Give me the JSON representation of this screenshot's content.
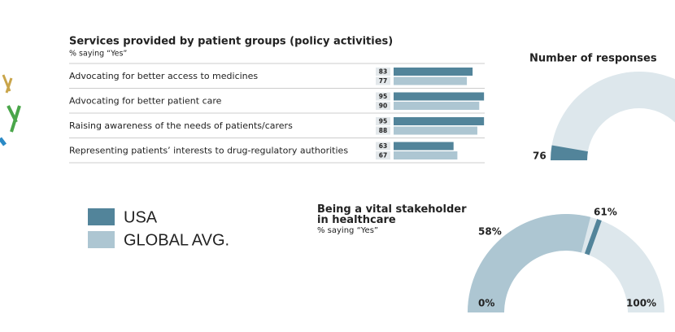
{
  "chart_data": [
    {
      "type": "hbar",
      "title": "Services provided by patient groups (policy activities)",
      "subtitle": "% saying “Yes”",
      "categories": [
        "Advocating for better access to medicines",
        "Advocating for better patient care",
        "Raising awareness of the needs of patients/carers",
        "Representing patients’ interests to drug-regulatory authorities"
      ],
      "series": [
        {
          "name": "USA",
          "color": "#52849a",
          "values": [
            83,
            95,
            95,
            63
          ]
        },
        {
          "name": "GLOBAL AVG.",
          "color": "#adc6d2",
          "values": [
            77,
            90,
            88,
            67
          ]
        }
      ],
      "xlim": [
        0,
        100
      ],
      "legend": "bottom-left"
    },
    {
      "type": "gauge",
      "title": "Number of responses",
      "values": [
        76
      ],
      "color": "#52849a",
      "ylim": [
        0,
        1400
      ]
    },
    {
      "type": "gauge",
      "title": "Being a vital stakeholder in healthcare",
      "subtitle": "% saying “Yes”",
      "values": [
        58,
        61
      ],
      "value_labels": [
        "58%",
        "61%"
      ],
      "colors": [
        "#adc6d2",
        "#52849a"
      ],
      "ylim": [
        0,
        100
      ],
      "yticks": [
        {
          "value": 0,
          "label": "0%"
        },
        {
          "value": 100,
          "label": "100%"
        }
      ]
    }
  ]
}
